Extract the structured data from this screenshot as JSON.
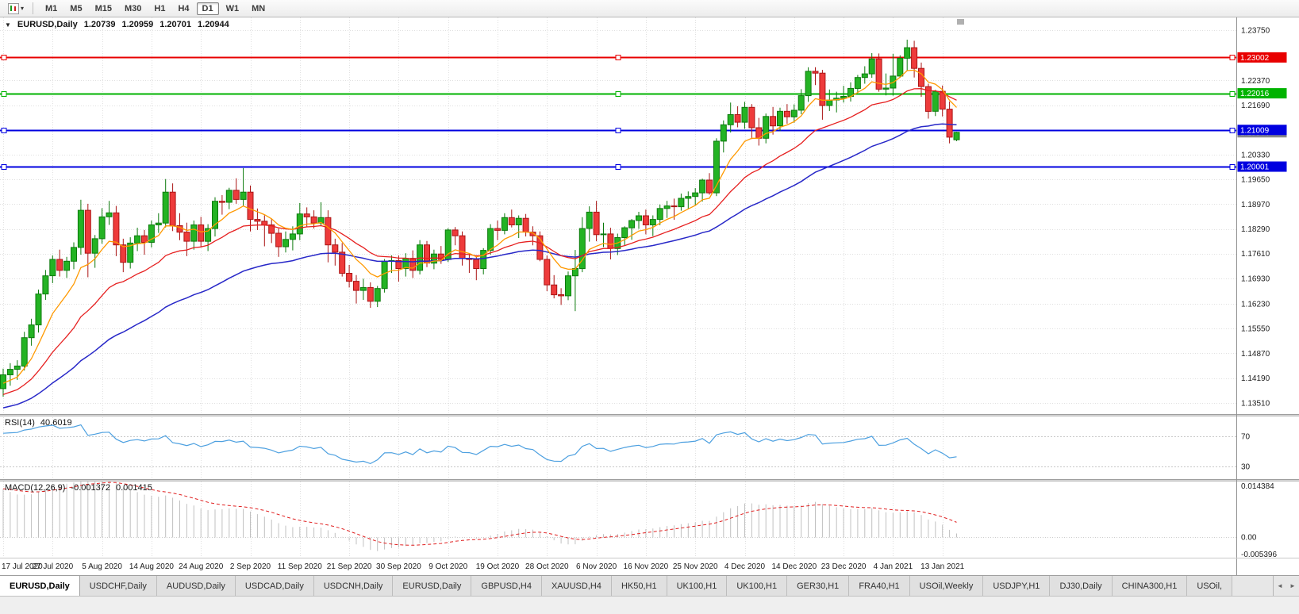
{
  "toolbar": {
    "timeframes": [
      "M1",
      "M5",
      "M15",
      "M30",
      "H1",
      "H4",
      "D1",
      "W1",
      "MN"
    ],
    "active_timeframe": "D1"
  },
  "icons": {
    "title_arrow": "▼",
    "dropdown_caret": "▾",
    "scroll_left": "◄",
    "scroll_right": "►"
  },
  "chart_title": {
    "symbol": "EURUSD,Daily",
    "open": "1.20739",
    "high": "1.20959",
    "low": "1.20701",
    "close": "1.20944"
  },
  "tabs": {
    "active_index": 0,
    "items": [
      "EURUSD,Daily",
      "USDCHF,Daily",
      "AUDUSD,Daily",
      "USDCAD,Daily",
      "USDCNH,Daily",
      "EURUSD,Daily",
      "GBPUSD,H4",
      "XAUUSD,H4",
      "HK50,H1",
      "UK100,H1",
      "UK100,H1",
      "GER30,H1",
      "FRA40,H1",
      "USOil,Weekly",
      "USDJPY,H1",
      "DJ30,Daily",
      "CHINA300,H1",
      "USOil,"
    ]
  },
  "chart_data": {
    "type": "candlestick",
    "symbol": "EURUSD",
    "timeframe": "Daily",
    "x_label_every": 7,
    "x_labels": [
      "17 Jul 2020",
      "27 Jul 2020",
      "5 Aug 2020",
      "14 Aug 2020",
      "24 Aug 2020",
      "2 Sep 2020",
      "11 Sep 2020",
      "21 Sep 2020",
      "30 Sep 2020",
      "9 Oct 2020",
      "19 Oct 2020",
      "28 Oct 2020",
      "6 Nov 2020",
      "16 Nov 2020",
      "25 Nov 2020",
      "4 Dec 2020",
      "14 Dec 2020",
      "23 Dec 2020",
      "4 Jan 2021",
      "13 Jan 2021"
    ],
    "y_axis_labels": [
      "1.23750",
      "1.22370",
      "1.21690",
      "1.20330",
      "1.19650",
      "1.18970",
      "1.18290",
      "1.17610",
      "1.16930",
      "1.16230",
      "1.15550",
      "1.14870",
      "1.14190",
      "1.13510"
    ],
    "y_range": [
      1.132,
      1.241
    ],
    "current_price": "1.20944",
    "candle_colors": {
      "up": "#24b324",
      "up_border": "#0c7a0c",
      "down": "#ee3b3b",
      "down_border": "#aa1414"
    },
    "colors": {
      "grid": "#e0e0e0",
      "background": "#ffffff",
      "axis_text": "#1c1c1c",
      "current_price_badge": "#888888"
    },
    "moving_average_colors": [
      "#ff9900",
      "#e62020",
      "#2828c8"
    ],
    "horizontal_lines": [
      {
        "label": "1.23002",
        "price": 1.23002,
        "color": "#e80000"
      },
      {
        "label": "1.22016",
        "price": 1.22016,
        "color": "#00b300"
      },
      {
        "label": "1.21009",
        "price": 1.21009,
        "color": "#0000e0"
      },
      {
        "label": "1.20001",
        "price": 1.20001,
        "color": "#0000e0"
      }
    ],
    "indicators": [
      {
        "name": "RSI",
        "label": "RSI(14)",
        "value": "40.6019",
        "levels": [
          "70",
          "30"
        ],
        "line_color": "#4da0e0"
      },
      {
        "name": "MACD",
        "label": "MACD(12,26,9)",
        "values": [
          "-0.001372",
          "0.001415"
        ],
        "axis_labels": [
          "0.014384",
          "0.00",
          "-0.005396"
        ],
        "range": [
          -0.005396,
          0.014384
        ],
        "histogram_color": "#c0c0c0",
        "signal_color": "#e02020"
      }
    ],
    "ohlc": [
      [
        1.139,
        1.1445,
        1.1368,
        1.1428
      ],
      [
        1.1428,
        1.146,
        1.1398,
        1.1443
      ],
      [
        1.1443,
        1.1468,
        1.1414,
        1.1452
      ],
      [
        1.1452,
        1.1546,
        1.144,
        1.153
      ],
      [
        1.153,
        1.1582,
        1.1508,
        1.1565
      ],
      [
        1.1565,
        1.1662,
        1.1544,
        1.165
      ],
      [
        1.165,
        1.1716,
        1.1634,
        1.17
      ],
      [
        1.17,
        1.1756,
        1.168,
        1.1745
      ],
      [
        1.1745,
        1.1772,
        1.1698,
        1.1715
      ],
      [
        1.1715,
        1.1752,
        1.1694,
        1.174
      ],
      [
        1.174,
        1.1792,
        1.1718,
        1.1778
      ],
      [
        1.1778,
        1.1909,
        1.1758,
        1.188
      ],
      [
        1.188,
        1.1898,
        1.1696,
        1.1762
      ],
      [
        1.1762,
        1.1812,
        1.1722,
        1.1802
      ],
      [
        1.1802,
        1.1886,
        1.1788,
        1.1862
      ],
      [
        1.1862,
        1.1906,
        1.184,
        1.1873
      ],
      [
        1.1873,
        1.1892,
        1.1754,
        1.1785
      ],
      [
        1.1785,
        1.1802,
        1.171,
        1.1737
      ],
      [
        1.1737,
        1.1806,
        1.172,
        1.179
      ],
      [
        1.179,
        1.1832,
        1.1768,
        1.181
      ],
      [
        1.181,
        1.1826,
        1.1758,
        1.1792
      ],
      [
        1.1792,
        1.1852,
        1.1778,
        1.184
      ],
      [
        1.184,
        1.1872,
        1.1818,
        1.1845
      ],
      [
        1.1845,
        1.1966,
        1.1833,
        1.193
      ],
      [
        1.193,
        1.1954,
        1.1823,
        1.1838
      ],
      [
        1.1838,
        1.1872,
        1.1798,
        1.182
      ],
      [
        1.182,
        1.1846,
        1.1754,
        1.1795
      ],
      [
        1.1795,
        1.1852,
        1.1772,
        1.184
      ],
      [
        1.184,
        1.1862,
        1.1778,
        1.1795
      ],
      [
        1.1795,
        1.1842,
        1.1768,
        1.183
      ],
      [
        1.183,
        1.1916,
        1.1808,
        1.1905
      ],
      [
        1.1905,
        1.1922,
        1.1868,
        1.1902
      ],
      [
        1.1902,
        1.1942,
        1.1883,
        1.1935
      ],
      [
        1.1935,
        1.1968,
        1.1898,
        1.191
      ],
      [
        1.191,
        1.1996,
        1.1892,
        1.193
      ],
      [
        1.193,
        1.1948,
        1.1822,
        1.1855
      ],
      [
        1.1855,
        1.1885,
        1.1826,
        1.185
      ],
      [
        1.185,
        1.1866,
        1.1781,
        1.184
      ],
      [
        1.184,
        1.1856,
        1.179,
        1.1817
      ],
      [
        1.1817,
        1.183,
        1.1752,
        1.178
      ],
      [
        1.178,
        1.1822,
        1.1764,
        1.18
      ],
      [
        1.18,
        1.1836,
        1.177,
        1.1815
      ],
      [
        1.1815,
        1.19,
        1.1798,
        1.187
      ],
      [
        1.187,
        1.1888,
        1.1834,
        1.1862
      ],
      [
        1.1862,
        1.188,
        1.183,
        1.1845
      ],
      [
        1.1845,
        1.1902,
        1.1836,
        1.186
      ],
      [
        1.186,
        1.188,
        1.1737,
        1.1785
      ],
      [
        1.1785,
        1.1802,
        1.1728,
        1.1765
      ],
      [
        1.1765,
        1.179,
        1.1698,
        1.1707
      ],
      [
        1.1707,
        1.173,
        1.1668,
        1.1685
      ],
      [
        1.1685,
        1.1702,
        1.1624,
        1.166
      ],
      [
        1.166,
        1.1692,
        1.1634,
        1.1668
      ],
      [
        1.1668,
        1.1682,
        1.1612,
        1.163
      ],
      [
        1.163,
        1.1672,
        1.1614,
        1.1665
      ],
      [
        1.1665,
        1.1746,
        1.1654,
        1.174
      ],
      [
        1.174,
        1.1756,
        1.1708,
        1.1742
      ],
      [
        1.1742,
        1.1756,
        1.1684,
        1.172
      ],
      [
        1.172,
        1.1762,
        1.1698,
        1.1748
      ],
      [
        1.1748,
        1.177,
        1.1694,
        1.1715
      ],
      [
        1.1715,
        1.1798,
        1.1704,
        1.1785
      ],
      [
        1.1785,
        1.1796,
        1.1724,
        1.1735
      ],
      [
        1.1735,
        1.1772,
        1.1718,
        1.176
      ],
      [
        1.176,
        1.1782,
        1.1733,
        1.1745
      ],
      [
        1.1745,
        1.1831,
        1.1738,
        1.1826
      ],
      [
        1.1826,
        1.1834,
        1.1784,
        1.181
      ],
      [
        1.181,
        1.1822,
        1.1728,
        1.1748
      ],
      [
        1.1748,
        1.1762,
        1.1708,
        1.1745
      ],
      [
        1.1745,
        1.1756,
        1.1688,
        1.172
      ],
      [
        1.172,
        1.1776,
        1.1704,
        1.177
      ],
      [
        1.177,
        1.1842,
        1.1758,
        1.183
      ],
      [
        1.183,
        1.1852,
        1.1798,
        1.1825
      ],
      [
        1.1825,
        1.1872,
        1.1814,
        1.186
      ],
      [
        1.186,
        1.1882,
        1.1833,
        1.184
      ],
      [
        1.184,
        1.1866,
        1.1804,
        1.1858
      ],
      [
        1.1858,
        1.187,
        1.1808,
        1.182
      ],
      [
        1.182,
        1.1836,
        1.1784,
        1.181
      ],
      [
        1.181,
        1.1822,
        1.174,
        1.1745
      ],
      [
        1.1745,
        1.1756,
        1.1658,
        1.1675
      ],
      [
        1.1675,
        1.1702,
        1.1638,
        1.1648
      ],
      [
        1.1648,
        1.1666,
        1.162,
        1.1645
      ],
      [
        1.1645,
        1.1712,
        1.1633,
        1.17
      ],
      [
        1.17,
        1.1771,
        1.1603,
        1.172
      ],
      [
        1.172,
        1.1861,
        1.171,
        1.183
      ],
      [
        1.183,
        1.1891,
        1.1794,
        1.1875
      ],
      [
        1.1875,
        1.1906,
        1.1795,
        1.1813
      ],
      [
        1.1813,
        1.1846,
        1.1779,
        1.1815
      ],
      [
        1.1815,
        1.1832,
        1.1745,
        1.1775
      ],
      [
        1.1775,
        1.1816,
        1.1757,
        1.1805
      ],
      [
        1.1805,
        1.1836,
        1.1784,
        1.1832
      ],
      [
        1.1832,
        1.1856,
        1.1799,
        1.1852
      ],
      [
        1.1852,
        1.1876,
        1.1829,
        1.1865
      ],
      [
        1.1865,
        1.1882,
        1.1814,
        1.184
      ],
      [
        1.184,
        1.1866,
        1.1809,
        1.1855
      ],
      [
        1.1855,
        1.1896,
        1.1839,
        1.1885
      ],
      [
        1.1885,
        1.1906,
        1.1859,
        1.1892
      ],
      [
        1.1892,
        1.1912,
        1.1854,
        1.189
      ],
      [
        1.189,
        1.1926,
        1.1879,
        1.1913
      ],
      [
        1.1913,
        1.1932,
        1.1884,
        1.1918
      ],
      [
        1.1918,
        1.1941,
        1.1894,
        1.1928
      ],
      [
        1.1928,
        1.1967,
        1.1904,
        1.1963
      ],
      [
        1.1963,
        1.1982,
        1.1923,
        1.1928
      ],
      [
        1.1928,
        1.2078,
        1.1919,
        1.207
      ],
      [
        1.207,
        1.2127,
        1.2039,
        1.2115
      ],
      [
        1.2115,
        1.2176,
        1.2094,
        1.2143
      ],
      [
        1.2143,
        1.2166,
        1.2108,
        1.2122
      ],
      [
        1.2122,
        1.2178,
        1.2104,
        1.2163
      ],
      [
        1.2163,
        1.2172,
        1.2076,
        1.2107
      ],
      [
        1.2107,
        1.2134,
        1.2058,
        1.2078
      ],
      [
        1.2078,
        1.2146,
        1.2064,
        1.2138
      ],
      [
        1.2138,
        1.2164,
        1.2088,
        1.2112
      ],
      [
        1.2112,
        1.2162,
        1.2098,
        1.2152
      ],
      [
        1.2152,
        1.2172,
        1.2118,
        1.2137
      ],
      [
        1.2137,
        1.2171,
        1.2121,
        1.2155
      ],
      [
        1.2155,
        1.2213,
        1.2144,
        1.2195
      ],
      [
        1.2195,
        1.2273,
        1.2178,
        1.2262
      ],
      [
        1.2262,
        1.2273,
        1.2224,
        1.2257
      ],
      [
        1.2257,
        1.2266,
        1.2129,
        1.2168
      ],
      [
        1.2168,
        1.2212,
        1.2153,
        1.2183
      ],
      [
        1.2183,
        1.2206,
        1.2149,
        1.2188
      ],
      [
        1.2188,
        1.2222,
        1.2176,
        1.2193
      ],
      [
        1.2193,
        1.2232,
        1.2179,
        1.2215
      ],
      [
        1.2215,
        1.2252,
        1.2203,
        1.2245
      ],
      [
        1.2245,
        1.2276,
        1.2228,
        1.2255
      ],
      [
        1.2255,
        1.2312,
        1.2244,
        1.2296
      ],
      [
        1.2296,
        1.2311,
        1.2206,
        1.2213
      ],
      [
        1.2213,
        1.2256,
        1.2196,
        1.2216
      ],
      [
        1.2216,
        1.231,
        1.2195,
        1.2249
      ],
      [
        1.2249,
        1.2306,
        1.2244,
        1.2298
      ],
      [
        1.2298,
        1.2349,
        1.2264,
        1.2327
      ],
      [
        1.2327,
        1.2346,
        1.2245,
        1.227
      ],
      [
        1.227,
        1.2286,
        1.2192,
        1.222
      ],
      [
        1.222,
        1.2228,
        1.2132,
        1.2152
      ],
      [
        1.2152,
        1.2211,
        1.2139,
        1.2207
      ],
      [
        1.2207,
        1.2223,
        1.2138,
        1.2158
      ],
      [
        1.2158,
        1.2179,
        1.2064,
        1.2081
      ],
      [
        1.20739,
        1.20959,
        1.20701,
        1.20944
      ]
    ]
  }
}
